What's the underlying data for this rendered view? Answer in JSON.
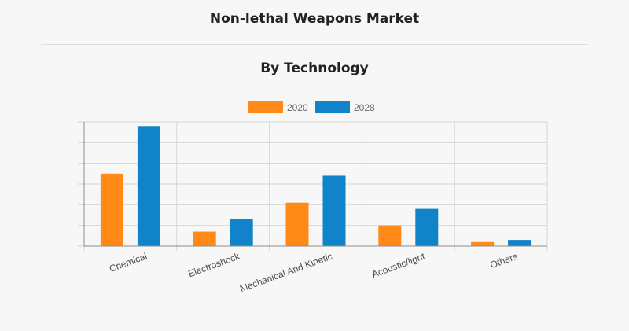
{
  "header": {
    "title": "Non-lethal Weapons Market",
    "subtitle": "By Technology"
  },
  "colors": {
    "series_2020": "#ff8a17",
    "series_2028": "#1183c8",
    "grid": "#d6d6d6",
    "axis": "#8c8c8c",
    "text": "#4d4d4d"
  },
  "chart_data": {
    "type": "bar",
    "categories": [
      "Chemical",
      "Electroshock",
      "Mechanical And Kinetic",
      "Acoustic/light",
      "Others"
    ],
    "series": [
      {
        "name": "2020",
        "values": [
          3.5,
          0.7,
          2.1,
          1.0,
          0.2
        ]
      },
      {
        "name": "2028",
        "values": [
          5.8,
          1.3,
          3.4,
          1.8,
          0.3
        ]
      }
    ],
    "ylim": [
      0,
      6
    ],
    "grid": true,
    "legend": "top-center"
  }
}
